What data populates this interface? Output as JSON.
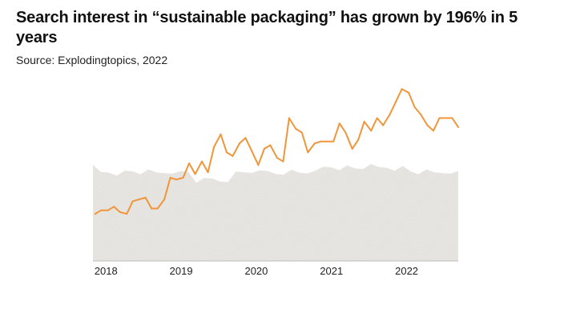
{
  "header": {
    "title": "Search interest in “sustainable packaging” has grown by 196% in 5 years",
    "subtitle": "Source: Explodingtopics, 2022"
  },
  "colors": {
    "line": "#F0953A",
    "background_area": "#ECEAE6",
    "baseline": "#BDBDBD"
  },
  "chart_data": {
    "type": "line",
    "title": "Search interest in “sustainable packaging” has grown by 196% in 5 years",
    "subtitle": "Source: Explodingtopics, 2022",
    "xlabel": "",
    "ylabel": "",
    "x_ticks": [
      "2018",
      "2019",
      "2020",
      "2021",
      "2022"
    ],
    "x_tick_values": [
      2018.0,
      2019.0,
      2020.0,
      2021.0,
      2022.0
    ],
    "xlim": [
      2017.97,
      2022.83
    ],
    "ylim": [
      0,
      100
    ],
    "y_axis_visible": false,
    "grid": false,
    "legend": "none",
    "series": [
      {
        "x": [
          2018.0,
          2018.08,
          2018.17,
          2018.25,
          2018.33,
          2018.42,
          2018.5,
          2018.58,
          2018.67,
          2018.75,
          2018.83,
          2018.92,
          2019.0,
          2019.08,
          2019.17,
          2019.25,
          2019.33,
          2019.42,
          2019.5,
          2019.58,
          2019.67,
          2019.75,
          2019.83,
          2019.92,
          2020.0,
          2020.08,
          2020.17,
          2020.25,
          2020.33,
          2020.42,
          2020.5,
          2020.58,
          2020.67,
          2020.75,
          2020.83,
          2020.92,
          2021.0,
          2021.08,
          2021.17,
          2021.25,
          2021.33,
          2021.42,
          2021.5,
          2021.58,
          2021.67,
          2021.75,
          2021.83,
          2021.92,
          2022.0,
          2022.08,
          2022.17,
          2022.25,
          2022.33,
          2022.42,
          2022.5,
          2022.58,
          2022.67,
          2022.75,
          2022.83
        ],
        "values": [
          26,
          28,
          28,
          30,
          27,
          26,
          33,
          34,
          35,
          29,
          29,
          34,
          46,
          45,
          46,
          54,
          48,
          55,
          49,
          63,
          70,
          60,
          58,
          65,
          68,
          61,
          53,
          62,
          64,
          57,
          55,
          79,
          73,
          71,
          60,
          65,
          66,
          66,
          66,
          76,
          71,
          62,
          67,
          77,
          72,
          79,
          75,
          81,
          88,
          95,
          93,
          85,
          81,
          75,
          72,
          79,
          79,
          79,
          74
        ]
      }
    ]
  }
}
